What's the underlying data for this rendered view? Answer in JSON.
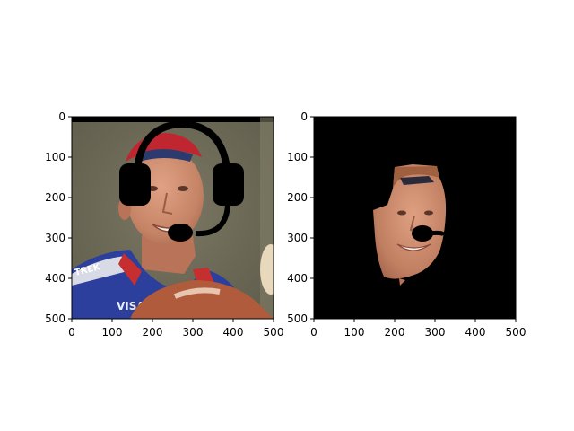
{
  "chart_data": [
    {
      "type": "image",
      "content": "photo of a smiling cyclist in a red cap and blue jersey with a drawn black headset overlay",
      "xlim": [
        0,
        500
      ],
      "ylim": [
        500,
        0
      ],
      "xticks": [
        "0",
        "100",
        "200",
        "300",
        "400",
        "500"
      ],
      "yticks": [
        "0",
        "100",
        "200",
        "300",
        "400",
        "500"
      ],
      "background": "#6d6a58"
    },
    {
      "type": "image",
      "content": "segmented face on a black background with a black microphone blob near the mouth",
      "xlim": [
        0,
        500
      ],
      "ylim": [
        500,
        0
      ],
      "xticks": [
        "0",
        "100",
        "200",
        "300",
        "400",
        "500"
      ],
      "yticks": [
        "0",
        "100",
        "200",
        "300",
        "400",
        "500"
      ],
      "background": "#000000"
    }
  ]
}
